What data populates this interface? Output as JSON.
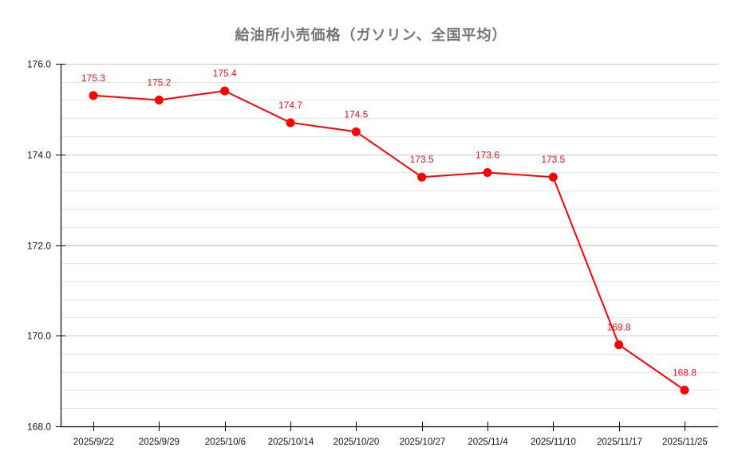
{
  "chart_data": {
    "type": "line",
    "title": "給油所小売価格（ガソリン、全国平均）",
    "xlabel": "",
    "ylabel": "",
    "categories": [
      "2025/9/22",
      "2025/9/29",
      "2025/10/6",
      "2025/10/14",
      "2025/10/20",
      "2025/10/27",
      "2025/11/4",
      "2025/11/10",
      "2025/11/17",
      "2025/11/25"
    ],
    "series": [
      {
        "name": "給油所小売価格（ガソリン、全国平均）",
        "values": [
          175.3,
          175.2,
          175.4,
          174.7,
          174.5,
          173.5,
          173.6,
          173.5,
          169.8,
          168.8
        ],
        "color": "#ff0000"
      }
    ],
    "data_labels": [
      "175.3",
      "175.2",
      "175.4",
      "174.7",
      "174.5",
      "173.5",
      "173.6",
      "173.5",
      "169.8",
      "168.8"
    ],
    "ylim": [
      168.0,
      176.0
    ],
    "yticks": [
      "176.0",
      "174.0",
      "172.0",
      "170.0",
      "168.0"
    ],
    "ytick_values": [
      176.0,
      174.0,
      172.0,
      170.0,
      168.0
    ],
    "minor_grid_step": 0.4,
    "grid": true,
    "legend": "none"
  },
  "colors": {
    "line": "#ff0000",
    "label": "#e8141b",
    "title": "#757575",
    "major_grid": "#c8c8c8",
    "minor_grid": "#e6e6e6",
    "axis": "#000000"
  }
}
